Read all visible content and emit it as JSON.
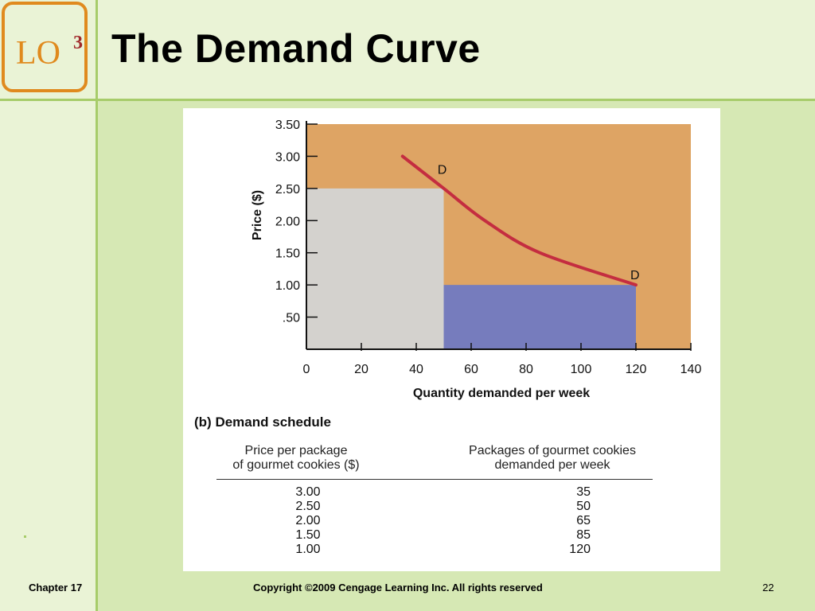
{
  "slide": {
    "lo_text": "LO",
    "lo_number": "3",
    "title": "The Demand Curve"
  },
  "schedule": {
    "label_prefix": "(b)",
    "label": "Demand schedule",
    "col_price": "Price per package\nof gourmet cookies ($)",
    "col_qty": "Packages of gourmet cookies\ndemanded per week",
    "rows": [
      {
        "price": "3.00",
        "qty": "35"
      },
      {
        "price": "2.50",
        "qty": "50"
      },
      {
        "price": "2.00",
        "qty": "65"
      },
      {
        "price": "1.50",
        "qty": "85"
      },
      {
        "price": "1.00",
        "qty": "120"
      }
    ]
  },
  "footer": {
    "chapter": "Chapter 17",
    "copyright": "Copyright ©2009 Cengage Learning Inc.  All rights reserved",
    "page": "22"
  },
  "colors": {
    "background_fill": "#dea464",
    "gray_rect": "#d4d2ce",
    "blue_rect": "#767cbd",
    "curve": "#c42d40",
    "badge_border": "#e08a1e",
    "lo_number": "#a0282a"
  },
  "chart_data": {
    "type": "line",
    "title": "",
    "xlabel": "Quantity demanded per week",
    "ylabel": "Price  ($)",
    "xlim": [
      0,
      140
    ],
    "ylim": [
      0,
      3.5
    ],
    "x_ticks": [
      "0",
      "20",
      "40",
      "60",
      "80",
      "100",
      "120",
      "140"
    ],
    "y_ticks": [
      ".50",
      "1.00",
      "1.50",
      "2.00",
      "2.50",
      "3.00",
      "3.50"
    ],
    "series": [
      {
        "x": [
          35,
          50,
          65,
          85,
          120
        ],
        "y": [
          3.0,
          2.5,
          2.0,
          1.5,
          1.0
        ]
      }
    ],
    "curve_labels": [
      "D",
      "D"
    ],
    "shaded_areas": [
      {
        "x_from": 0,
        "x_to": 50,
        "y_from": 0,
        "y_to": 2.5
      },
      {
        "x_from": 50,
        "x_to": 120,
        "y_from": 0,
        "y_to": 1.0
      }
    ],
    "grid": false
  }
}
